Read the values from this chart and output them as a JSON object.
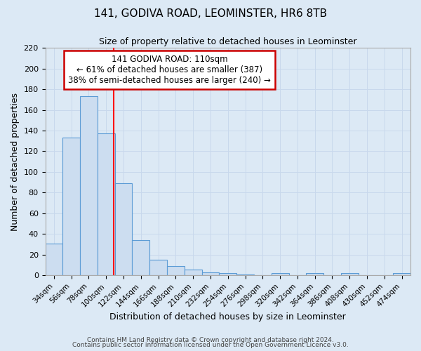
{
  "title1": "141, GODIVA ROAD, LEOMINSTER, HR6 8TB",
  "title2": "Size of property relative to detached houses in Leominster",
  "xlabel": "Distribution of detached houses by size in Leominster",
  "ylabel": "Number of detached properties",
  "footnote1": "Contains HM Land Registry data © Crown copyright and database right 2024.",
  "footnote2": "Contains public sector information licensed under the Open Government Licence v3.0.",
  "bar_labels": [
    "34sqm",
    "56sqm",
    "78sqm",
    "100sqm",
    "122sqm",
    "144sqm",
    "166sqm",
    "188sqm",
    "210sqm",
    "232sqm",
    "254sqm",
    "276sqm",
    "298sqm",
    "320sqm",
    "342sqm",
    "364sqm",
    "386sqm",
    "408sqm",
    "430sqm",
    "452sqm",
    "474sqm"
  ],
  "bar_values": [
    31,
    133,
    173,
    137,
    89,
    34,
    15,
    9,
    6,
    3,
    2,
    1,
    0,
    2,
    0,
    2,
    0,
    2,
    0,
    0,
    2
  ],
  "bar_color": "#ccddf0",
  "bar_edge_color": "#5b9bd5",
  "red_line_x": 3.45,
  "annotation_title": "141 GODIVA ROAD: 110sqm",
  "annotation_line1": "← 61% of detached houses are smaller (387)",
  "annotation_line2": "38% of semi-detached houses are larger (240) →",
  "annotation_box_color": "#ffffff",
  "annotation_box_edge": "#cc0000",
  "ylim": [
    0,
    220
  ],
  "yticks": [
    0,
    20,
    40,
    60,
    80,
    100,
    120,
    140,
    160,
    180,
    200,
    220
  ],
  "grid_color": "#c8d8ec",
  "background_color": "#dce9f5"
}
